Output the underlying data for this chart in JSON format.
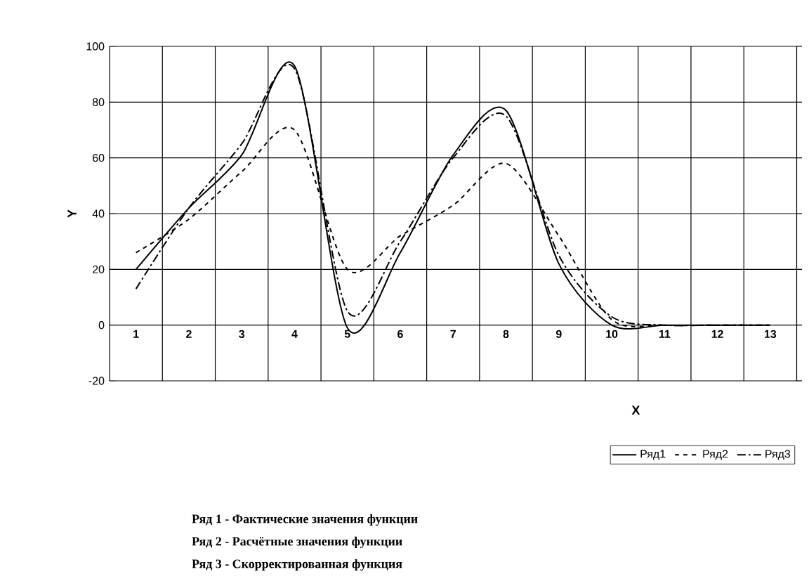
{
  "chart_data": {
    "type": "line",
    "xlabel": "X",
    "ylabel": "Y",
    "categories": [
      "1",
      "2",
      "3",
      "4",
      "5",
      "6",
      "7",
      "8",
      "9",
      "10",
      "11",
      "12",
      "13"
    ],
    "series": [
      {
        "name": "Ряд1",
        "color": "#000000",
        "line_style": "solid",
        "values": [
          20,
          42,
          61,
          93,
          -1,
          26,
          61,
          77,
          22,
          0,
          0,
          0,
          0
        ]
      },
      {
        "name": "Ряд2",
        "color": "#000000",
        "line_style": "dashed",
        "values": [
          26,
          38,
          55,
          70,
          20,
          32,
          43,
          58,
          32,
          2,
          0,
          0,
          0
        ]
      },
      {
        "name": "Ряд3",
        "color": "#000000",
        "line_style": "dashdot",
        "values": [
          13,
          42,
          65,
          92,
          5,
          30,
          60,
          75,
          25,
          3,
          0,
          0,
          0
        ]
      }
    ],
    "ylim": [
      -20,
      100
    ],
    "yticks": [
      -20,
      0,
      20,
      40,
      60,
      80,
      100
    ],
    "grid": true,
    "legend": "bottom right",
    "marker": "none",
    "annotations": [
      "Ряд 1 - Фактические значения функции",
      "Ряд 2 - Расчётные значения функции",
      "Ряд 3 - Скорректированная функция"
    ]
  }
}
